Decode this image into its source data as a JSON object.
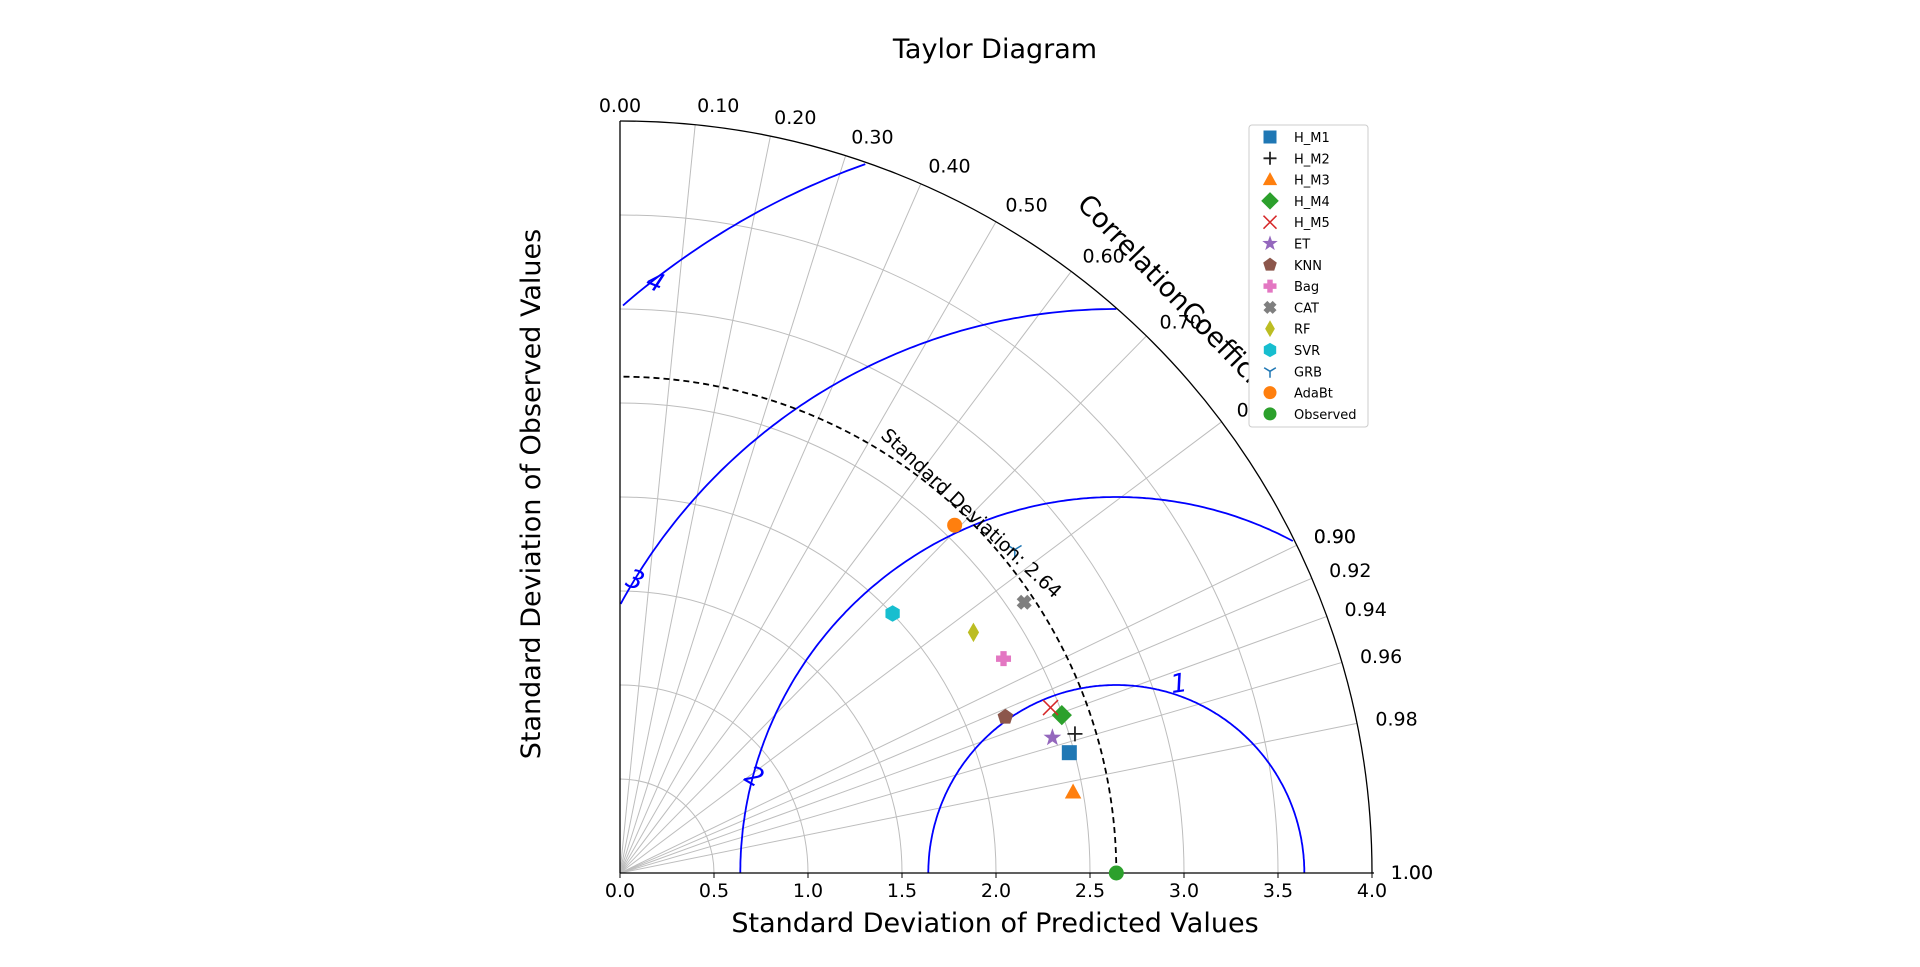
{
  "chart_data": {
    "type": "scatter",
    "title": "Taylor Diagram",
    "xlabel": "Standard Deviation of Predicted Values",
    "ylabel": "Standard Deviation of Observed Values",
    "correlation_label": "CorrelationCoefficient",
    "std_ref_label": "Standard Deviation: 2.64",
    "std_ticks": [
      "0.0",
      "0.5",
      "1.0",
      "1.5",
      "2.0",
      "2.5",
      "3.0",
      "3.5",
      "4.0"
    ],
    "std_range": [
      0,
      4.0
    ],
    "reference_std": 2.64,
    "corr_ticks": [
      "0.00",
      "0.10",
      "0.20",
      "0.30",
      "0.40",
      "0.50",
      "0.60",
      "0.70",
      "0.80",
      "0.90",
      "0.90",
      "0.92",
      "0.94",
      "0.96",
      "0.98",
      "1.00",
      "1.00"
    ],
    "rms_contour_labels": [
      "1",
      "2",
      "3",
      "4"
    ],
    "grid": true,
    "legend_position": "top-right",
    "series": [
      {
        "name": "H_M1",
        "marker": "square",
        "color": "#1f77b4",
        "x": 2.39,
        "y": 0.64
      },
      {
        "name": "H_M2",
        "marker": "plus",
        "color": "#222222",
        "x": 2.42,
        "y": 0.74
      },
      {
        "name": "H_M3",
        "marker": "triangle",
        "color": "#ff7f0e",
        "x": 2.41,
        "y": 0.43
      },
      {
        "name": "H_M4",
        "marker": "diamond",
        "color": "#2ca02c",
        "x": 2.35,
        "y": 0.84
      },
      {
        "name": "H_M5",
        "marker": "x",
        "color": "#d62728",
        "x": 2.29,
        "y": 0.88
      },
      {
        "name": "ET",
        "marker": "star",
        "color": "#9467bd",
        "x": 2.3,
        "y": 0.72
      },
      {
        "name": "KNN",
        "marker": "pentagon",
        "color": "#8c564b",
        "x": 2.05,
        "y": 0.83
      },
      {
        "name": "Bag",
        "marker": "pluscross",
        "color": "#e377c2",
        "x": 2.04,
        "y": 1.14
      },
      {
        "name": "CAT",
        "marker": "xcross",
        "color": "#7f7f7f",
        "x": 2.15,
        "y": 1.44
      },
      {
        "name": "RF",
        "marker": "thindiamond",
        "color": "#bcbd22",
        "x": 1.88,
        "y": 1.28
      },
      {
        "name": "SVR",
        "marker": "hexagon",
        "color": "#17becf",
        "x": 1.45,
        "y": 1.38
      },
      {
        "name": "GRB",
        "marker": "tri",
        "color": "#1f77b4",
        "x": 2.1,
        "y": 1.72
      },
      {
        "name": "AdaBt",
        "marker": "circle",
        "color": "#ff7f0e",
        "x": 1.78,
        "y": 1.85
      },
      {
        "name": "Observed",
        "marker": "circle",
        "color": "#2ca02c",
        "x": 2.64,
        "y": 0.0
      }
    ]
  }
}
